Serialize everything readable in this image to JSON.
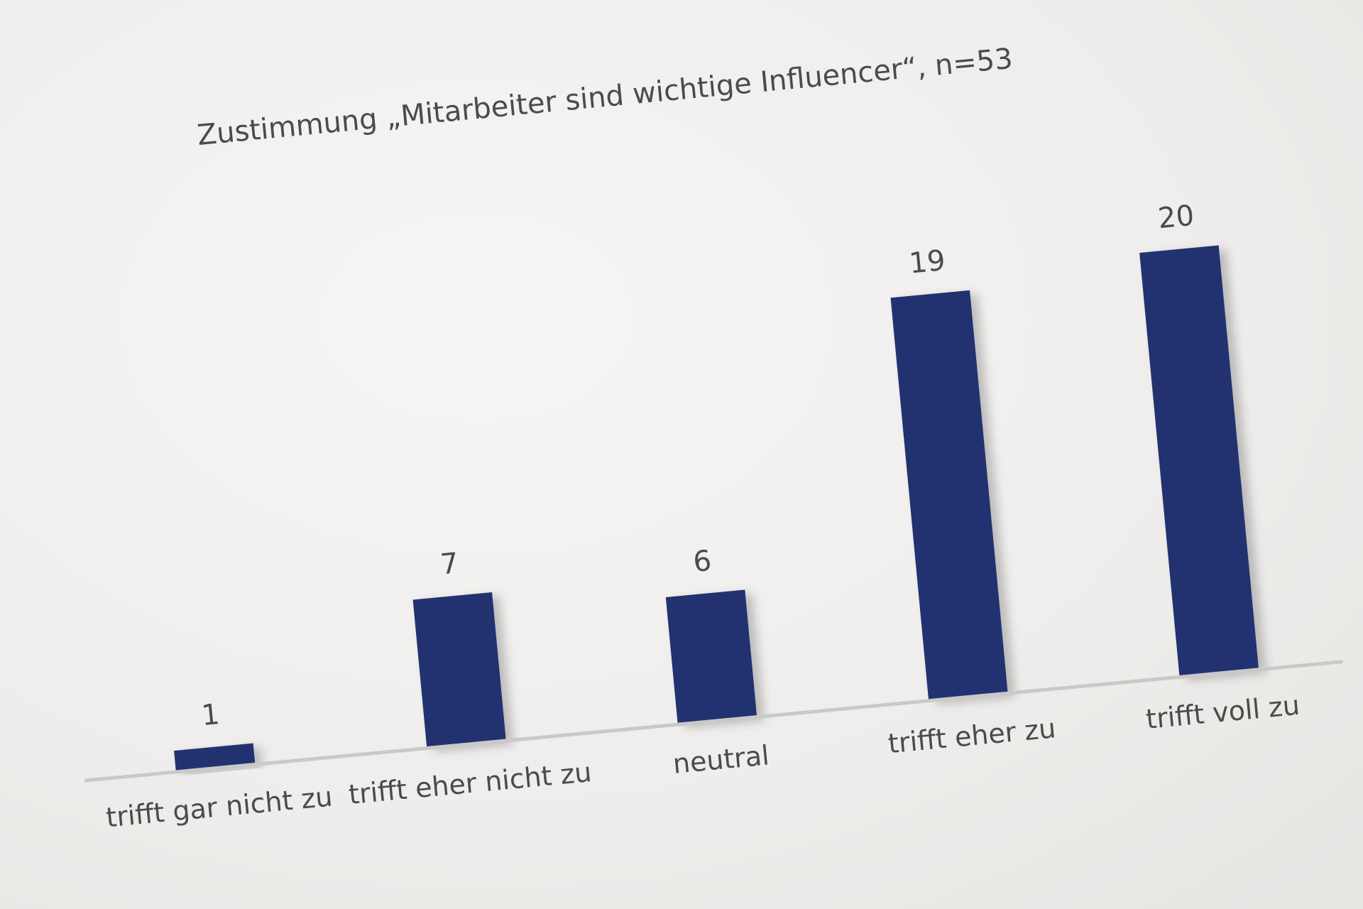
{
  "chart_data": {
    "type": "bar",
    "title": "Zustimmung „Mitarbeiter sind wichtige Influencer“,  n=53",
    "categories": [
      "trifft gar nicht  zu",
      "trifft eher nicht zu",
      "neutral",
      "trifft eher zu",
      "trifft voll zu"
    ],
    "values": [
      1,
      7,
      6,
      19,
      20
    ],
    "xlabel": "",
    "ylabel": "",
    "ylim": [
      0,
      20
    ],
    "grid": false,
    "legend": "none",
    "colors": {
      "bar": "#233270",
      "axis": "#c9c9c7",
      "text": "#4b4b4b",
      "background": "#efeeec"
    }
  }
}
